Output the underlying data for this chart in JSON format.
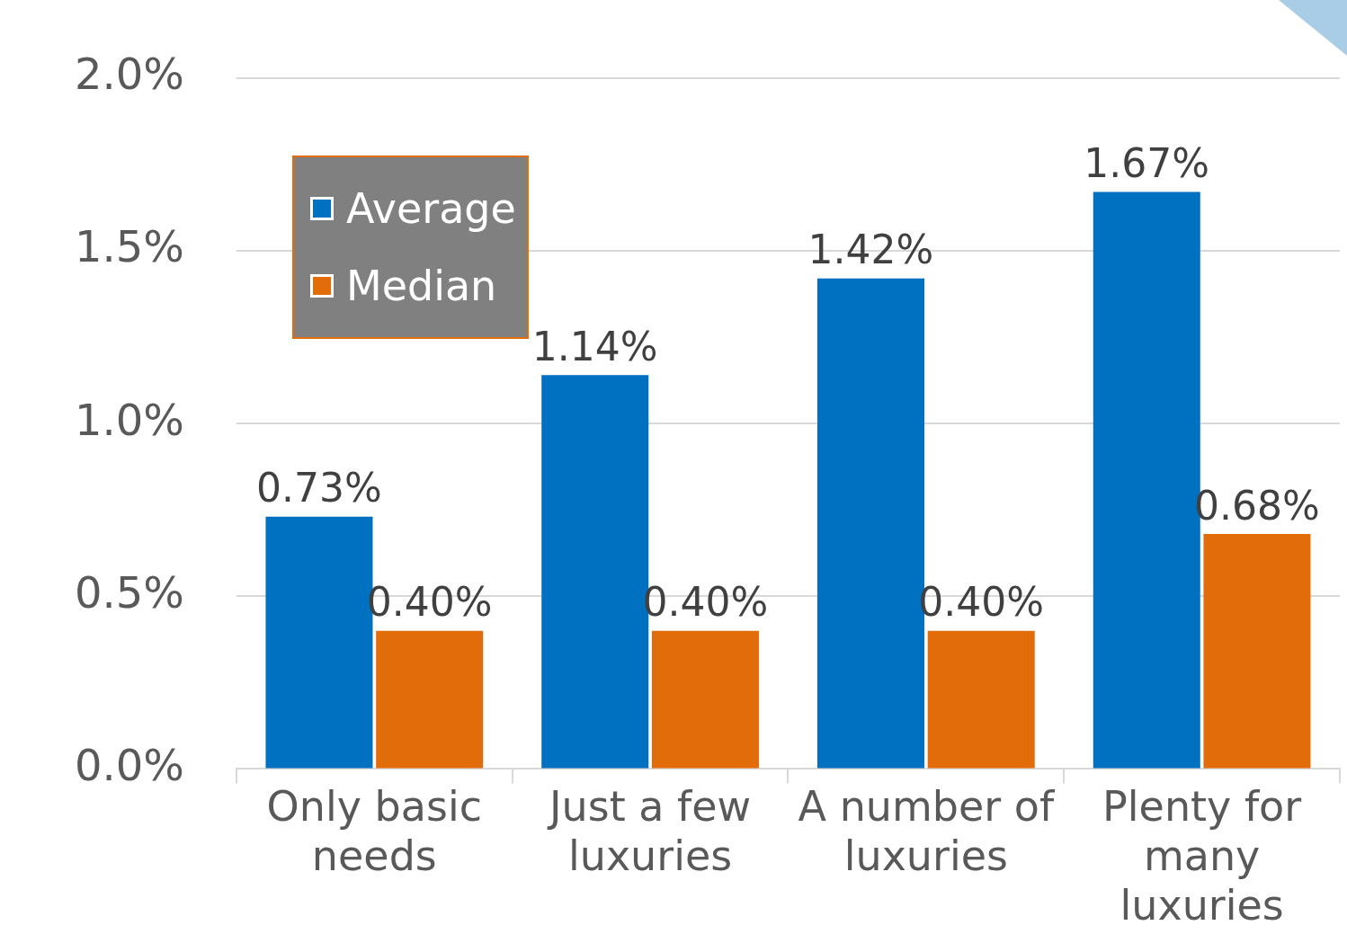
{
  "chart_data": {
    "type": "bar",
    "categories": [
      "Only basic needs",
      "Just a few luxuries",
      "A number of luxuries",
      "Plenty for many luxuries"
    ],
    "series": [
      {
        "name": "Average",
        "color": "#0070c0",
        "values": [
          0.73,
          1.14,
          1.42,
          1.67
        ],
        "value_labels": [
          "0.73%",
          "1.14%",
          "1.42%",
          "1.67%"
        ]
      },
      {
        "name": "Median",
        "color": "#e36c0a",
        "values": [
          0.4,
          0.4,
          0.4,
          0.68
        ],
        "value_labels": [
          "0.40%",
          "0.40%",
          "0.40%",
          "0.68%"
        ]
      }
    ],
    "ylim": [
      0,
      2
    ],
    "yticks": [
      {
        "value": 0,
        "label": "0.0%"
      },
      {
        "value": 0.5,
        "label": "0.5%"
      },
      {
        "value": 1,
        "label": "1.0%"
      },
      {
        "value": 1.5,
        "label": "1.5%"
      },
      {
        "value": 2,
        "label": "2.0%"
      }
    ],
    "grid": "y",
    "legend": "top left"
  }
}
